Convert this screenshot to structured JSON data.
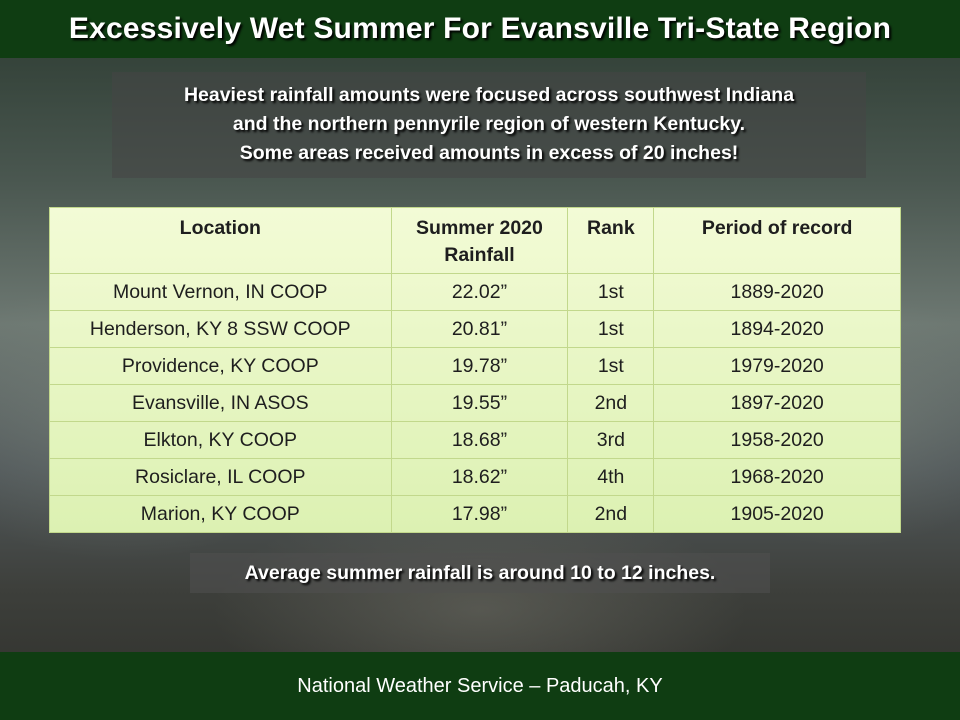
{
  "header": {
    "title": "Excessively Wet Summer For Evansville Tri-State Region"
  },
  "intro": {
    "line1": "Heaviest rainfall amounts were focused across southwest Indiana",
    "line2": "and the northern pennyrile region of western Kentucky.",
    "line3": "Some areas received amounts in excess of 20 inches!"
  },
  "table": {
    "headers": {
      "location": "Location",
      "rainfall_line1": "Summer 2020",
      "rainfall_line2": "Rainfall",
      "rank": "Rank",
      "period": "Period of record"
    },
    "rows": [
      {
        "location": "Mount Vernon, IN COOP",
        "rainfall": "22.02”",
        "rank": "1st",
        "period": "1889-2020"
      },
      {
        "location": "Henderson, KY 8 SSW COOP",
        "rainfall": "20.81”",
        "rank": "1st",
        "period": "1894-2020"
      },
      {
        "location": "Providence, KY COOP",
        "rainfall": "19.78”",
        "rank": "1st",
        "period": "1979-2020"
      },
      {
        "location": "Evansville, IN ASOS",
        "rainfall": "19.55”",
        "rank": "2nd",
        "period": "1897-2020"
      },
      {
        "location": "Elkton, KY COOP",
        "rainfall": "18.68”",
        "rank": "3rd",
        "period": "1958-2020"
      },
      {
        "location": "Rosiclare, IL COOP",
        "rainfall": "18.62”",
        "rank": "4th",
        "period": "1968-2020"
      },
      {
        "location": "Marion, KY COOP",
        "rainfall": "17.98”",
        "rank": "2nd",
        "period": "1905-2020"
      }
    ]
  },
  "note": {
    "text": "Average summer rainfall is around 10 to 12 inches."
  },
  "footer": {
    "text": "National Weather Service – Paducah, KY"
  },
  "colors": {
    "banner": "#0f3d12",
    "table_fill": "#e6f5c2"
  }
}
